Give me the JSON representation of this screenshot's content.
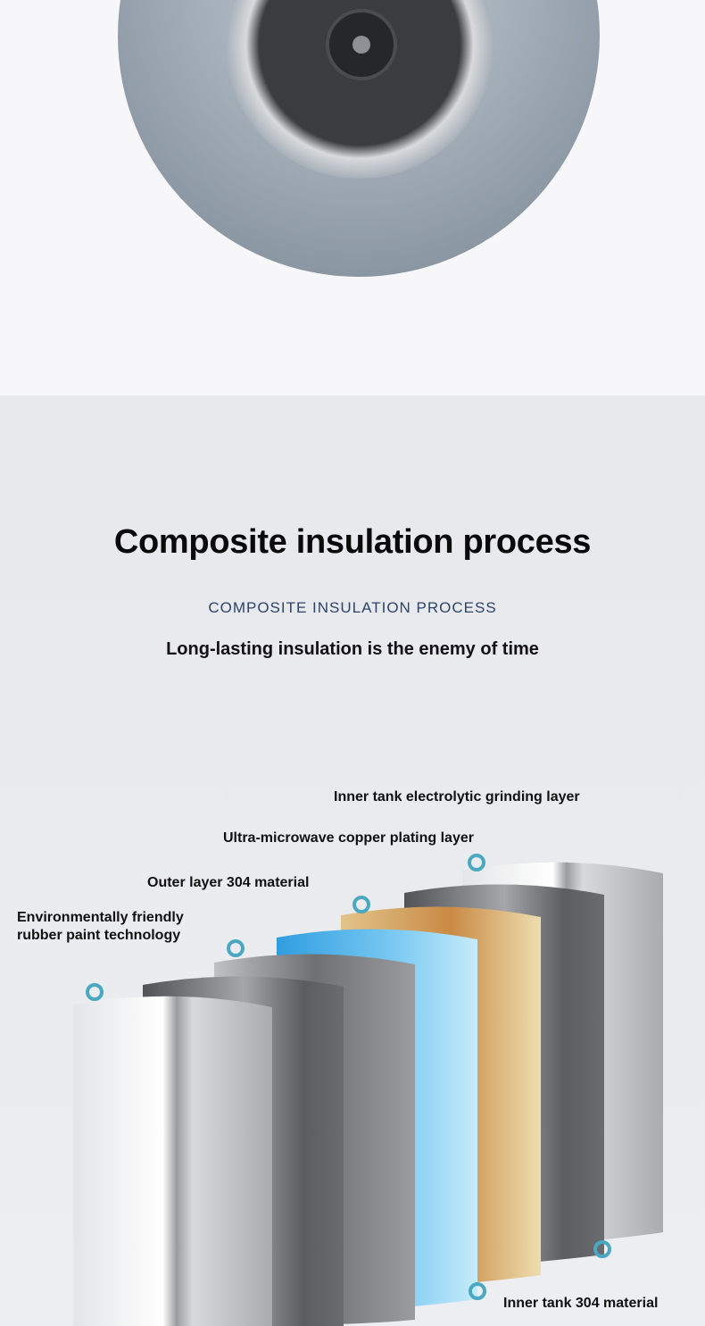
{
  "heading": {
    "title": "Composite insulation process",
    "subtitle": "COMPOSITE INSULATION PROCESS",
    "tagline": "Long-lasting insulation is the enemy of time"
  },
  "layer_labels": {
    "inner_grinding": "Inner tank electrolytic grinding layer",
    "copper": "Ultra-microwave copper plating layer",
    "outer_304": "Outer layer 304 material",
    "rubber_line1": "Environmentally friendly",
    "rubber_line2": "rubber paint technology",
    "inner_304": "Inner tank 304 material"
  },
  "colors": {
    "marker": "#4aa8c0",
    "blue_layer": "#3ab0ea",
    "gold_layer": "#d8a868",
    "subtitle": "#2e4468"
  }
}
